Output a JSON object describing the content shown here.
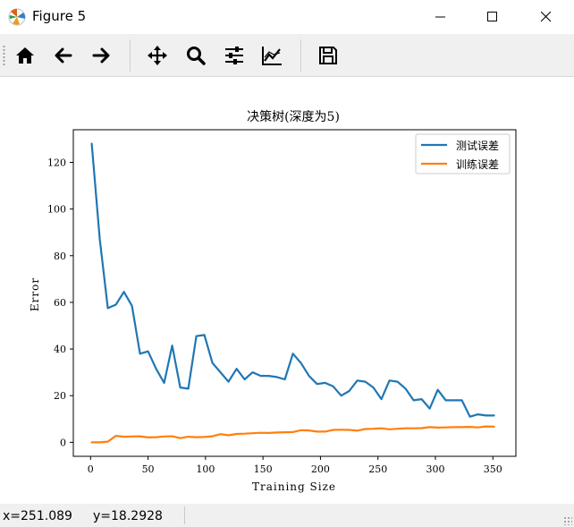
{
  "window": {
    "title": "Figure 5",
    "icons": [
      "matplotlib-icon",
      "minimize-icon",
      "maximize-icon",
      "close-icon"
    ]
  },
  "toolbar": {
    "buttons": [
      {
        "name": "home",
        "icon": "home-icon"
      },
      {
        "name": "back",
        "icon": "arrow-left-icon"
      },
      {
        "name": "forward",
        "icon": "arrow-right-icon"
      },
      {
        "name": "pan",
        "icon": "move-icon"
      },
      {
        "name": "zoom",
        "icon": "magnifier-icon"
      },
      {
        "name": "configure-subplots",
        "icon": "sliders-icon"
      },
      {
        "name": "edit-axis",
        "icon": "line-chart-icon"
      },
      {
        "name": "save",
        "icon": "floppy-disk-icon"
      }
    ]
  },
  "status": {
    "x": "x=251.089",
    "y": "y=18.2928"
  },
  "colors": {
    "test_line": "#1f77b4",
    "train_line": "#ff7f0e",
    "toolbar_bg": "#f0f0f0"
  },
  "chart_data": {
    "type": "line",
    "title": "决策树(深度为5)",
    "xlabel": "Training Size",
    "ylabel": "Error",
    "xlim": [
      -15,
      370
    ],
    "ylim": [
      -6,
      134
    ],
    "xticks": [
      0,
      50,
      100,
      150,
      200,
      250,
      300,
      350
    ],
    "yticks": [
      0,
      20,
      40,
      60,
      80,
      100,
      120
    ],
    "legend_position": "top-right",
    "series": [
      {
        "name": "测试误差",
        "color": "#1f77b4",
        "x": [
          1,
          8,
          15,
          22,
          29,
          36,
          43,
          50,
          57,
          64,
          71,
          78,
          85,
          92,
          99,
          106,
          113,
          120,
          127,
          134,
          141,
          148,
          155,
          162,
          169,
          176,
          183,
          190,
          197,
          204,
          211,
          218,
          225,
          232,
          239,
          246,
          253,
          260,
          267,
          274,
          281,
          288,
          295,
          302,
          309,
          316,
          323,
          330,
          337,
          344,
          351
        ],
        "y": [
          128,
          87,
          57.5,
          59,
          64.5,
          58.5,
          38,
          39,
          31.5,
          25.5,
          41.5,
          23.5,
          23,
          45.5,
          46,
          34,
          30,
          26,
          31.5,
          27,
          30,
          28.5,
          28.5,
          28,
          27,
          38,
          34,
          28.5,
          25,
          25.5,
          24,
          20,
          22,
          26.5,
          26,
          23.5,
          18.5,
          26.5,
          26,
          23,
          18,
          18.5,
          14.5,
          22.5,
          18,
          18,
          18,
          11,
          12,
          11.5,
          11.5
        ]
      },
      {
        "name": "训练误差",
        "color": "#ff7f0e",
        "x": [
          1,
          8,
          15,
          22,
          29,
          36,
          43,
          50,
          57,
          64,
          71,
          78,
          85,
          92,
          99,
          106,
          113,
          120,
          127,
          134,
          141,
          148,
          155,
          162,
          169,
          176,
          183,
          190,
          197,
          204,
          211,
          218,
          225,
          232,
          239,
          246,
          253,
          260,
          267,
          274,
          281,
          288,
          295,
          302,
          309,
          316,
          323,
          330,
          337,
          344,
          351
        ],
        "y": [
          0,
          0,
          0.3,
          2.8,
          2.4,
          2.5,
          2.6,
          2.1,
          2.2,
          2.5,
          2.6,
          1.8,
          2.4,
          2.2,
          2.3,
          2.6,
          3.5,
          3,
          3.6,
          3.7,
          3.9,
          4.1,
          4,
          4.2,
          4.3,
          4.4,
          5.2,
          5.1,
          4.6,
          4.6,
          5.3,
          5.4,
          5.3,
          5,
          5.7,
          5.8,
          6,
          5.6,
          5.8,
          6,
          6,
          6.1,
          6.5,
          6.3,
          6.4,
          6.5,
          6.5,
          6.6,
          6.4,
          6.8,
          6.7
        ]
      }
    ]
  }
}
